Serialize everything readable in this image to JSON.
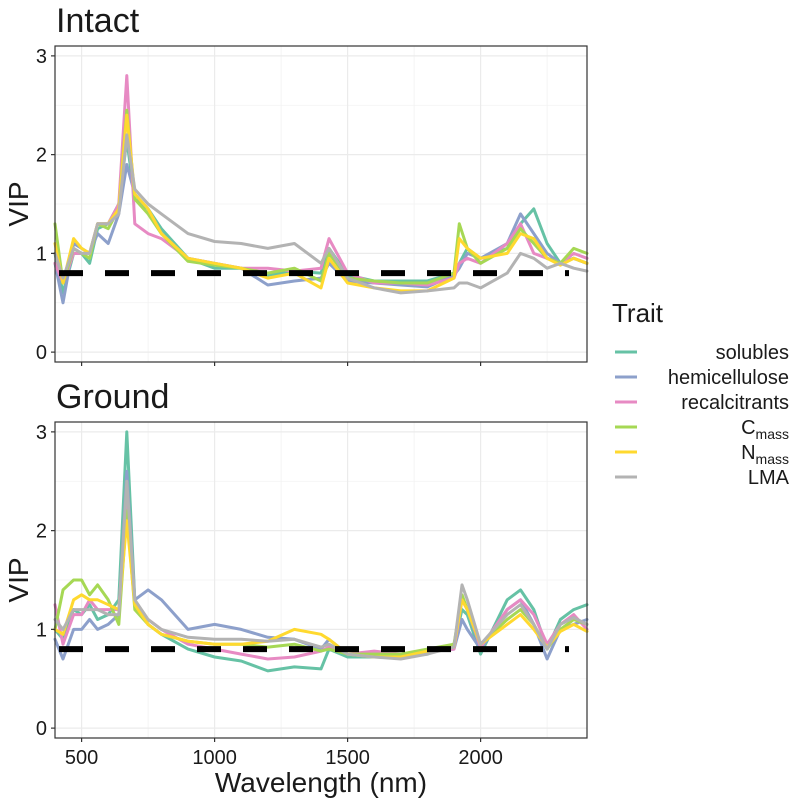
{
  "chart_data": [
    {
      "type": "line",
      "title": "Intact",
      "ylabel": "VIP",
      "xlabel": "",
      "xlim": [
        400,
        2400
      ],
      "ylim": [
        -0.1,
        3.1
      ],
      "y_ticks": [
        0,
        1,
        2,
        3
      ],
      "y_tick_labels": [
        "0",
        "1",
        "2",
        "3"
      ],
      "x_ticks": [
        500,
        1000,
        1500,
        2000
      ],
      "x_tick_labels": [],
      "threshold": 0.8,
      "grid": true,
      "series": [
        {
          "name": "solubles",
          "x": [
            400,
            430,
            470,
            500,
            530,
            560,
            600,
            640,
            670,
            700,
            750,
            800,
            900,
            1000,
            1100,
            1200,
            1300,
            1400,
            1430,
            1500,
            1600,
            1700,
            1800,
            1900,
            1920,
            1950,
            2000,
            2100,
            2150,
            2200,
            2250,
            2300,
            2350,
            2400
          ],
          "y": [
            1.0,
            0.6,
            1.0,
            1.0,
            0.9,
            1.25,
            1.3,
            1.5,
            2.15,
            1.55,
            1.45,
            1.25,
            0.95,
            0.85,
            0.85,
            0.78,
            0.82,
            0.8,
            1.05,
            0.78,
            0.72,
            0.72,
            0.72,
            0.8,
            0.9,
            1.05,
            0.95,
            1.05,
            1.3,
            1.45,
            1.1,
            0.9,
            0.95,
            0.9
          ]
        },
        {
          "name": "hemicellulose",
          "x": [
            400,
            430,
            470,
            500,
            530,
            560,
            600,
            640,
            670,
            700,
            750,
            800,
            900,
            1000,
            1100,
            1200,
            1300,
            1400,
            1430,
            1500,
            1600,
            1700,
            1800,
            1900,
            1920,
            1950,
            2000,
            2100,
            2150,
            2200,
            2250,
            2300,
            2350,
            2400
          ],
          "y": [
            0.9,
            0.5,
            1.1,
            1.05,
            1.0,
            1.2,
            1.1,
            1.4,
            1.9,
            1.6,
            1.45,
            1.2,
            0.95,
            0.9,
            0.85,
            0.68,
            0.72,
            0.75,
            0.9,
            0.72,
            0.7,
            0.68,
            0.66,
            0.78,
            0.85,
            1.0,
            0.95,
            1.1,
            1.4,
            1.2,
            1.0,
            0.9,
            0.95,
            0.9
          ]
        },
        {
          "name": "recalcitrants",
          "x": [
            400,
            430,
            470,
            500,
            530,
            560,
            600,
            640,
            670,
            700,
            750,
            800,
            900,
            1000,
            1100,
            1200,
            1300,
            1400,
            1430,
            1500,
            1600,
            1700,
            1800,
            1900,
            1920,
            1950,
            2000,
            2100,
            2150,
            2200,
            2250,
            2300,
            2350,
            2400
          ],
          "y": [
            0.9,
            0.7,
            1.0,
            1.0,
            1.0,
            1.3,
            1.3,
            1.5,
            2.8,
            1.3,
            1.2,
            1.15,
            0.95,
            0.9,
            0.85,
            0.85,
            0.82,
            0.85,
            1.15,
            0.8,
            0.7,
            0.7,
            0.68,
            0.75,
            0.9,
            0.95,
            0.9,
            1.1,
            1.3,
            1.0,
            0.95,
            0.9,
            1.0,
            0.95
          ]
        },
        {
          "name": "Cmass",
          "x": [
            400,
            430,
            470,
            500,
            530,
            560,
            600,
            640,
            670,
            700,
            750,
            800,
            900,
            1000,
            1100,
            1200,
            1300,
            1400,
            1430,
            1500,
            1600,
            1700,
            1800,
            1900,
            1920,
            1950,
            2000,
            2100,
            2150,
            2200,
            2250,
            2300,
            2350,
            2400
          ],
          "y": [
            1.3,
            0.7,
            1.05,
            1.0,
            0.95,
            1.3,
            1.25,
            1.45,
            2.45,
            1.55,
            1.4,
            1.2,
            0.92,
            0.88,
            0.85,
            0.8,
            0.85,
            0.72,
            1.0,
            0.75,
            0.72,
            0.7,
            0.7,
            0.8,
            1.3,
            1.05,
            0.9,
            1.05,
            1.25,
            1.1,
            0.95,
            0.9,
            1.05,
            1.0
          ]
        },
        {
          "name": "Nmass",
          "x": [
            400,
            430,
            470,
            500,
            530,
            560,
            600,
            640,
            670,
            700,
            750,
            800,
            900,
            1000,
            1100,
            1200,
            1300,
            1400,
            1430,
            1500,
            1600,
            1700,
            1800,
            1900,
            1920,
            1950,
            2000,
            2100,
            2150,
            2200,
            2250,
            2300,
            2350,
            2400
          ],
          "y": [
            1.1,
            0.7,
            1.15,
            1.05,
            1.0,
            1.3,
            1.3,
            1.45,
            2.4,
            1.6,
            1.45,
            1.2,
            0.95,
            0.9,
            0.85,
            0.75,
            0.8,
            0.65,
            0.95,
            0.7,
            0.65,
            0.62,
            0.62,
            0.75,
            1.15,
            1.05,
            0.95,
            1.0,
            1.2,
            1.15,
            0.95,
            0.88,
            0.95,
            0.9
          ]
        },
        {
          "name": "LMA",
          "x": [
            400,
            430,
            470,
            500,
            530,
            560,
            600,
            640,
            670,
            700,
            750,
            800,
            900,
            1000,
            1100,
            1200,
            1300,
            1400,
            1430,
            1500,
            1600,
            1700,
            1800,
            1900,
            1920,
            1950,
            2000,
            2100,
            2150,
            2200,
            2250,
            2300,
            2350,
            2400
          ],
          "y": [
            1.0,
            0.75,
            1.05,
            1.0,
            1.0,
            1.3,
            1.3,
            1.4,
            2.2,
            1.65,
            1.5,
            1.4,
            1.2,
            1.12,
            1.1,
            1.05,
            1.1,
            0.9,
            1.05,
            0.75,
            0.65,
            0.6,
            0.62,
            0.65,
            0.7,
            0.7,
            0.65,
            0.8,
            1.0,
            0.95,
            0.85,
            0.9,
            0.85,
            0.82
          ]
        }
      ]
    },
    {
      "type": "line",
      "title": "Ground",
      "ylabel": "VIP",
      "xlabel": "Wavelength (nm)",
      "xlim": [
        400,
        2400
      ],
      "ylim": [
        -0.1,
        3.1
      ],
      "y_ticks": [
        0,
        1,
        2,
        3
      ],
      "y_tick_labels": [
        "0",
        "1",
        "2",
        "3"
      ],
      "x_ticks": [
        500,
        1000,
        1500,
        2000
      ],
      "x_tick_labels": [
        "500",
        "1000",
        "1500",
        "2000"
      ],
      "threshold": 0.8,
      "grid": true,
      "series": [
        {
          "name": "solubles",
          "x": [
            400,
            430,
            470,
            500,
            530,
            560,
            600,
            640,
            670,
            700,
            750,
            800,
            900,
            1000,
            1100,
            1200,
            1300,
            1400,
            1430,
            1500,
            1600,
            1700,
            1800,
            1900,
            1930,
            1950,
            2000,
            2100,
            2150,
            2200,
            2250,
            2300,
            2350,
            2400
          ],
          "y": [
            1.0,
            0.9,
            1.2,
            1.15,
            1.25,
            1.1,
            1.15,
            1.3,
            3.0,
            1.3,
            1.05,
            0.95,
            0.8,
            0.72,
            0.68,
            0.58,
            0.62,
            0.6,
            0.8,
            0.72,
            0.72,
            0.72,
            0.75,
            0.85,
            1.2,
            1.15,
            0.75,
            1.3,
            1.4,
            1.2,
            0.8,
            1.1,
            1.2,
            1.25
          ]
        },
        {
          "name": "hemicellulose",
          "x": [
            400,
            430,
            470,
            500,
            530,
            560,
            600,
            640,
            670,
            700,
            750,
            800,
            900,
            1000,
            1100,
            1200,
            1300,
            1400,
            1430,
            1500,
            1600,
            1700,
            1800,
            1900,
            1930,
            1950,
            2000,
            2100,
            2150,
            2200,
            2250,
            2300,
            2350,
            2400
          ],
          "y": [
            0.9,
            0.7,
            1.0,
            1.0,
            1.1,
            1.0,
            1.05,
            1.15,
            2.6,
            1.3,
            1.4,
            1.3,
            1.0,
            1.05,
            1.0,
            0.92,
            0.9,
            0.8,
            0.9,
            0.75,
            0.75,
            0.75,
            0.78,
            0.8,
            1.1,
            1.0,
            0.8,
            1.2,
            1.3,
            1.05,
            0.7,
            1.0,
            1.05,
            1.1
          ]
        },
        {
          "name": "recalcitrants",
          "x": [
            400,
            430,
            470,
            500,
            530,
            560,
            600,
            640,
            670,
            700,
            750,
            800,
            900,
            1000,
            1100,
            1200,
            1300,
            1400,
            1430,
            1500,
            1600,
            1700,
            1800,
            1900,
            1930,
            1950,
            2000,
            2100,
            2150,
            2200,
            2250,
            2300,
            2350,
            2400
          ],
          "y": [
            1.25,
            0.85,
            1.15,
            1.15,
            1.3,
            1.2,
            1.2,
            1.2,
            2.3,
            1.25,
            1.1,
            1.0,
            0.85,
            0.8,
            0.75,
            0.7,
            0.72,
            0.78,
            0.82,
            0.75,
            0.78,
            0.75,
            0.78,
            0.8,
            1.3,
            1.2,
            0.82,
            1.2,
            1.3,
            1.15,
            0.85,
            1.05,
            1.15,
            1.0
          ]
        },
        {
          "name": "Cmass",
          "x": [
            400,
            430,
            470,
            500,
            530,
            560,
            600,
            640,
            670,
            700,
            750,
            800,
            900,
            1000,
            1100,
            1200,
            1300,
            1400,
            1430,
            1500,
            1600,
            1700,
            1800,
            1900,
            1930,
            1950,
            2000,
            2100,
            2150,
            2200,
            2250,
            2300,
            2350,
            2400
          ],
          "y": [
            1.0,
            1.4,
            1.5,
            1.5,
            1.35,
            1.45,
            1.3,
            1.05,
            2.2,
            1.2,
            1.05,
            0.95,
            0.88,
            0.85,
            0.85,
            0.82,
            0.85,
            0.78,
            0.8,
            0.75,
            0.75,
            0.75,
            0.8,
            0.85,
            1.35,
            1.2,
            0.85,
            1.1,
            1.2,
            1.05,
            0.8,
            1.0,
            1.1,
            1.05
          ]
        },
        {
          "name": "Nmass",
          "x": [
            400,
            430,
            470,
            500,
            530,
            560,
            600,
            640,
            670,
            700,
            750,
            800,
            900,
            1000,
            1100,
            1200,
            1300,
            1400,
            1430,
            1500,
            1600,
            1700,
            1800,
            1900,
            1930,
            1950,
            2000,
            2100,
            2150,
            2200,
            2250,
            2300,
            2350,
            2400
          ],
          "y": [
            1.0,
            0.95,
            1.3,
            1.35,
            1.3,
            1.3,
            1.25,
            1.2,
            2.1,
            1.25,
            1.05,
            0.95,
            0.88,
            0.85,
            0.85,
            0.88,
            1.0,
            0.95,
            0.9,
            0.75,
            0.72,
            0.72,
            0.78,
            0.82,
            1.3,
            1.2,
            0.85,
            1.05,
            1.15,
            1.0,
            0.82,
            0.98,
            1.05,
            0.98
          ]
        },
        {
          "name": "LMA",
          "x": [
            400,
            430,
            470,
            500,
            530,
            560,
            600,
            640,
            670,
            700,
            750,
            800,
            900,
            1000,
            1100,
            1200,
            1300,
            1400,
            1430,
            1500,
            1600,
            1700,
            1800,
            1900,
            1930,
            1950,
            2000,
            2100,
            2150,
            2200,
            2250,
            2300,
            2350,
            2400
          ],
          "y": [
            1.1,
            1.0,
            1.2,
            1.2,
            1.2,
            1.2,
            1.15,
            1.15,
            2.5,
            1.3,
            1.1,
            1.0,
            0.92,
            0.9,
            0.9,
            0.88,
            0.9,
            0.82,
            0.85,
            0.75,
            0.72,
            0.7,
            0.75,
            0.82,
            1.45,
            1.3,
            0.85,
            1.15,
            1.25,
            1.05,
            0.8,
            1.05,
            1.12,
            1.05
          ]
        }
      ]
    }
  ],
  "legend": {
    "title": "Trait",
    "placement": "right",
    "items": [
      {
        "label": "solubles",
        "sub": "",
        "color": "#66c2a5"
      },
      {
        "label": "hemicellulose",
        "sub": "",
        "color": "#8da0cb"
      },
      {
        "label": "recalcitrants",
        "sub": "",
        "color": "#e78ac3"
      },
      {
        "label": "C",
        "sub": "mass",
        "color": "#a6d854"
      },
      {
        "label": "N",
        "sub": "mass",
        "color": "#ffd92f"
      },
      {
        "label": "LMA",
        "sub": "",
        "color": "#b3b3b3"
      }
    ]
  }
}
